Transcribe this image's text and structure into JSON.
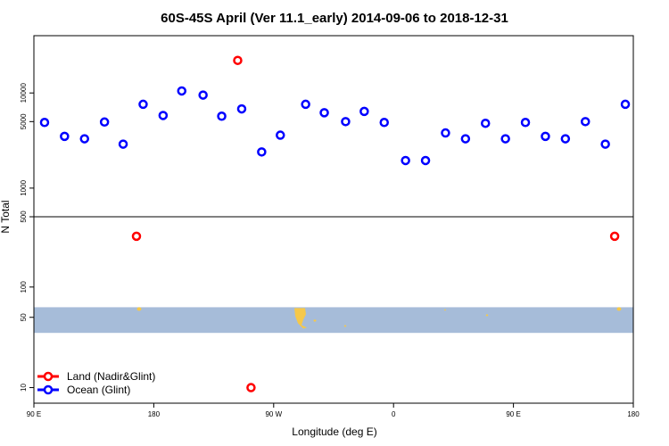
{
  "chart_data": {
    "type": "scatter",
    "title": "60S-45S April (Ver 11.1_early)   2014-09-06 to 2018-12-31",
    "xlabel": "Longitude (deg E)",
    "ylabel": "N Total",
    "x_ticks": [
      {
        "value": 90,
        "label": "90 E"
      },
      {
        "value": 180,
        "label": "180"
      },
      {
        "value": 270,
        "label": "90 W"
      },
      {
        "value": 360,
        "label": "0"
      },
      {
        "value": 450,
        "label": "90 E"
      },
      {
        "value": 540,
        "label": "180"
      }
    ],
    "xlim": [
      90,
      540
    ],
    "upper_panel": {
      "scale": "log",
      "ylim": [
        500,
        40000
      ],
      "y_ticks": [
        {
          "value": 500,
          "label": "500"
        },
        {
          "value": 1000,
          "label": "1000"
        },
        {
          "value": 5000,
          "label": "5000"
        },
        {
          "value": 10000,
          "label": "10000"
        }
      ]
    },
    "lower_panel": {
      "scale": "log",
      "ylim": [
        7,
        500
      ],
      "y_ticks": [
        {
          "value": 10,
          "label": "10"
        },
        {
          "value": 50,
          "label": "50"
        },
        {
          "value": 100,
          "label": "100"
        }
      ],
      "band": {
        "color": "#a6bcd9",
        "y_range": [
          35,
          63
        ]
      }
    },
    "series": [
      {
        "name": "Land (Nadir&Glint)",
        "color": "#ff0000",
        "points": [
          {
            "x": 167,
            "y": 320
          },
          {
            "x": 526,
            "y": 320
          },
          {
            "x": 253,
            "y": 10
          },
          {
            "x": 243,
            "y": 22000
          }
        ]
      },
      {
        "name": "Ocean (Glint)",
        "color": "#0000ff",
        "points": [
          {
            "x": 98,
            "y": 4900
          },
          {
            "x": 113,
            "y": 3500
          },
          {
            "x": 128,
            "y": 3300
          },
          {
            "x": 143,
            "y": 4950
          },
          {
            "x": 157,
            "y": 2900
          },
          {
            "x": 172,
            "y": 7600
          },
          {
            "x": 187,
            "y": 5800
          },
          {
            "x": 201,
            "y": 10500
          },
          {
            "x": 217,
            "y": 9500
          },
          {
            "x": 231,
            "y": 5700
          },
          {
            "x": 246,
            "y": 6800
          },
          {
            "x": 261,
            "y": 2400
          },
          {
            "x": 275,
            "y": 3600
          },
          {
            "x": 294,
            "y": 7600
          },
          {
            "x": 308,
            "y": 6200
          },
          {
            "x": 324,
            "y": 5000
          },
          {
            "x": 338,
            "y": 6400
          },
          {
            "x": 353,
            "y": 4900
          },
          {
            "x": 369,
            "y": 1950
          },
          {
            "x": 384,
            "y": 1950
          },
          {
            "x": 399,
            "y": 3800
          },
          {
            "x": 414,
            "y": 3300
          },
          {
            "x": 429,
            "y": 4800
          },
          {
            "x": 444,
            "y": 3300
          },
          {
            "x": 459,
            "y": 4900
          },
          {
            "x": 474,
            "y": 3500
          },
          {
            "x": 489,
            "y": 3300
          },
          {
            "x": 504,
            "y": 5000
          },
          {
            "x": 519,
            "y": 2900
          },
          {
            "x": 534,
            "y": 7600
          }
        ]
      }
    ],
    "legend": {
      "position": "bottom-left"
    }
  }
}
